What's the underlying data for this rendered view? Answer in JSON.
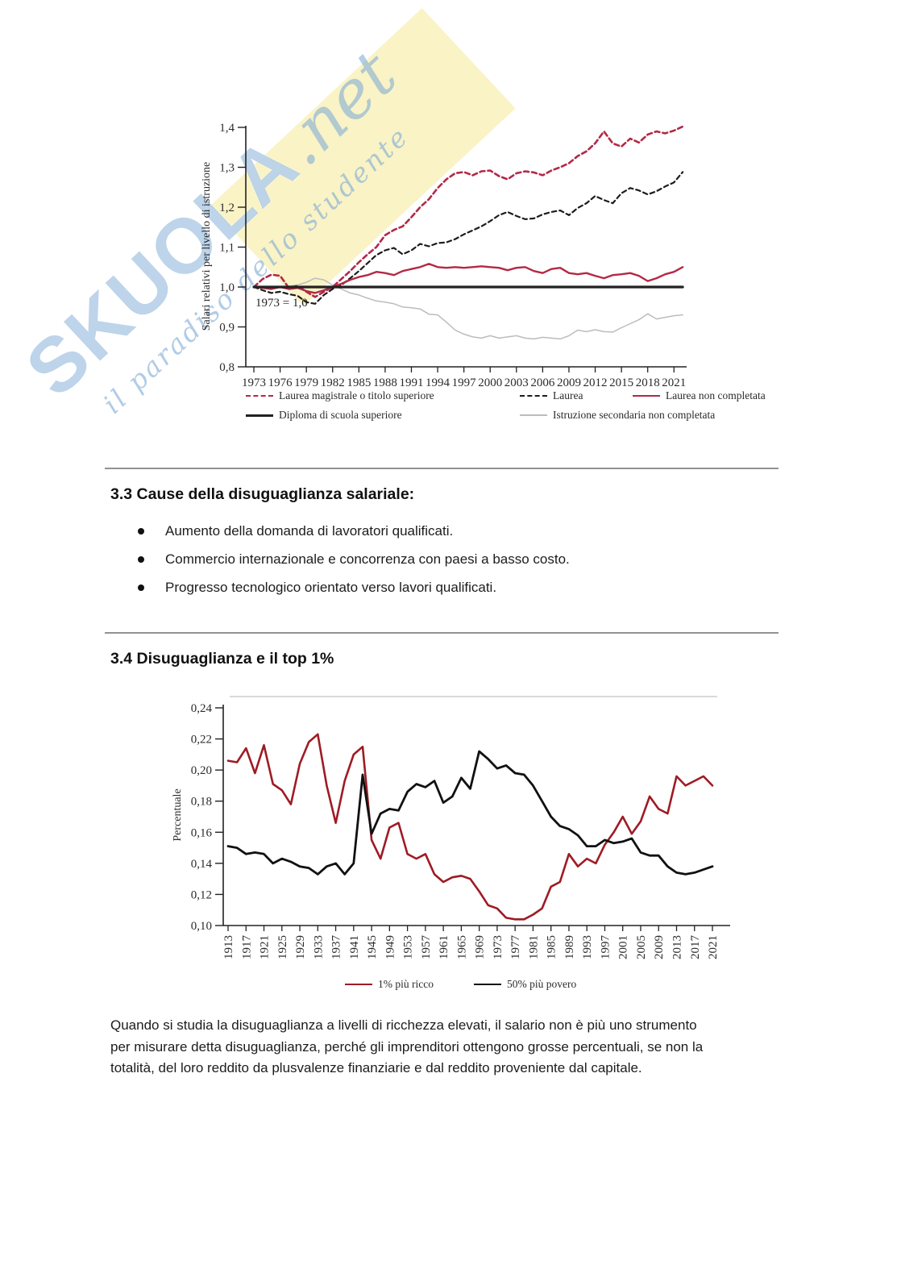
{
  "watermark": {
    "brand": "SKUOLA",
    "suffix": ".net",
    "tagline": "il paradiso dello studente",
    "brand_color": "#7caad5",
    "panel_color": "#f9f2c1"
  },
  "sections": {
    "causes": {
      "heading": "3.3 Cause della disuguaglianza salariale:",
      "bullets": [
        "Aumento della domanda di lavoratori qualificati.",
        "Commercio internazionale e concorrenza con paesi a basso costo.",
        "Progresso tecnologico orientato verso lavori qualificati."
      ]
    },
    "top1": {
      "heading": "3.4 Disuguaglianza e il top 1%"
    },
    "closing_paragraph": "Quando si studia la disuguaglianza a livelli di ricchezza elevati, il salario non è più uno strumento per misurare detta disuguaglianza, perché gli imprenditori ottengono grosse percentuali, se non la totalità, del loro reddito da plusvalenze finanziarie e dal reddito proveniente dal capitale."
  },
  "chart_data": [
    {
      "id": "wages-by-education",
      "type": "line",
      "title": "",
      "xlabel": "",
      "ylabel": "Salari relativi per livello di istruzione",
      "annotation": "1973 = 1,0",
      "ylim": [
        0.8,
        1.4
      ],
      "ytick_step": 0.1,
      "ytick_labels": [
        "0,8",
        "0,9",
        "1,0",
        "1,1",
        "1,2",
        "1,3",
        "1,4"
      ],
      "xticks": [
        1973,
        1976,
        1979,
        1982,
        1985,
        1988,
        1991,
        1994,
        1997,
        2000,
        2003,
        2006,
        2009,
        2012,
        2015,
        2018,
        2021
      ],
      "grid": false,
      "legend_position": "below",
      "x": [
        1973,
        1974,
        1975,
        1976,
        1977,
        1978,
        1979,
        1980,
        1981,
        1982,
        1983,
        1984,
        1985,
        1986,
        1987,
        1988,
        1989,
        1990,
        1991,
        1992,
        1993,
        1994,
        1995,
        1996,
        1997,
        1998,
        1999,
        2000,
        2001,
        2002,
        2003,
        2004,
        2005,
        2006,
        2007,
        2008,
        2009,
        2010,
        2011,
        2012,
        2013,
        2014,
        2015,
        2016,
        2017,
        2018,
        2019,
        2020,
        2021,
        2022
      ],
      "series": [
        {
          "name": "Laurea magistrale o titolo superiore",
          "color": "#b32946",
          "dash": "6 4",
          "width": 2.6,
          "values": [
            1.0,
            1.02,
            1.031,
            1.028,
            0.998,
            1.003,
            0.988,
            0.975,
            0.988,
            1.0,
            1.02,
            1.04,
            1.062,
            1.082,
            1.1,
            1.13,
            1.143,
            1.152,
            1.175,
            1.2,
            1.22,
            1.248,
            1.27,
            1.285,
            1.288,
            1.28,
            1.29,
            1.292,
            1.278,
            1.27,
            1.285,
            1.29,
            1.287,
            1.28,
            1.292,
            1.3,
            1.31,
            1.328,
            1.34,
            1.36,
            1.39,
            1.36,
            1.352,
            1.372,
            1.362,
            1.382,
            1.39,
            1.385,
            1.392,
            1.402
          ]
        },
        {
          "name": "Laurea",
          "color": "#1c1c1c",
          "dash": "5.5 4",
          "width": 2.2,
          "values": [
            1.0,
            0.992,
            0.985,
            0.988,
            0.982,
            0.978,
            0.962,
            0.958,
            0.98,
            0.995,
            1.005,
            1.022,
            1.04,
            1.06,
            1.08,
            1.092,
            1.098,
            1.082,
            1.092,
            1.108,
            1.102,
            1.11,
            1.112,
            1.12,
            1.132,
            1.142,
            1.152,
            1.165,
            1.18,
            1.188,
            1.178,
            1.17,
            1.172,
            1.182,
            1.188,
            1.192,
            1.18,
            1.198,
            1.21,
            1.228,
            1.218,
            1.21,
            1.235,
            1.248,
            1.242,
            1.232,
            1.24,
            1.252,
            1.262,
            1.288
          ]
        },
        {
          "name": "Laurea non completata",
          "color": "#b32946",
          "dash": null,
          "width": 2.4,
          "values": [
            1.0,
            0.998,
            0.995,
            1.0,
            0.995,
            0.998,
            0.99,
            0.985,
            0.992,
            1.0,
            1.008,
            1.018,
            1.025,
            1.03,
            1.038,
            1.035,
            1.03,
            1.04,
            1.045,
            1.05,
            1.058,
            1.05,
            1.048,
            1.05,
            1.048,
            1.05,
            1.052,
            1.05,
            1.048,
            1.042,
            1.048,
            1.05,
            1.04,
            1.035,
            1.045,
            1.048,
            1.035,
            1.032,
            1.035,
            1.028,
            1.022,
            1.03,
            1.032,
            1.035,
            1.028,
            1.015,
            1.022,
            1.032,
            1.038,
            1.05
          ]
        },
        {
          "name": "Diploma di scuola superiore",
          "color": "#222222",
          "dash": null,
          "width": 3.2,
          "values": [
            1.0,
            1.0,
            1.0,
            1.0,
            1.0,
            1.0,
            1.0,
            1.0,
            1.0,
            1.0,
            1.0,
            1.0,
            1.0,
            1.0,
            1.0,
            1.0,
            1.0,
            1.0,
            1.0,
            1.0,
            1.0,
            1.0,
            1.0,
            1.0,
            1.0,
            1.0,
            1.0,
            1.0,
            1.0,
            1.0,
            1.0,
            1.0,
            1.0,
            1.0,
            1.0,
            1.0,
            1.0,
            1.0,
            1.0,
            1.0,
            1.0,
            1.0,
            1.0,
            1.0,
            1.0,
            1.0,
            1.0,
            1.0,
            1.0,
            1.0
          ]
        },
        {
          "name": "Istruzione secondaria non completata",
          "color": "#bcbcbc",
          "dash": null,
          "width": 1.5,
          "z": -1,
          "values": [
            1.0,
            1.0,
            0.998,
            1.0,
            1.002,
            1.005,
            1.012,
            1.022,
            1.018,
            1.005,
            0.995,
            0.985,
            0.98,
            0.972,
            0.965,
            0.962,
            0.958,
            0.95,
            0.948,
            0.945,
            0.932,
            0.93,
            0.912,
            0.892,
            0.882,
            0.875,
            0.872,
            0.878,
            0.872,
            0.875,
            0.878,
            0.872,
            0.87,
            0.874,
            0.872,
            0.87,
            0.878,
            0.892,
            0.888,
            0.893,
            0.888,
            0.887,
            0.898,
            0.908,
            0.918,
            0.933,
            0.92,
            0.924,
            0.928,
            0.93
          ]
        }
      ]
    },
    {
      "id": "top1-vs-bottom50",
      "type": "line",
      "title": "",
      "xlabel": "",
      "ylabel": "Percentuale",
      "annotation": null,
      "ylim": [
        0.1,
        0.24
      ],
      "ytick_step": 0.02,
      "ytick_labels": [
        "0,10",
        "0,12",
        "0,14",
        "0,16",
        "0,18",
        "0,20",
        "0,22",
        "0,24"
      ],
      "xticks": [
        1913,
        1917,
        1921,
        1925,
        1929,
        1933,
        1937,
        1941,
        1945,
        1949,
        1953,
        1957,
        1961,
        1965,
        1969,
        1973,
        1977,
        1981,
        1985,
        1989,
        1993,
        1997,
        2001,
        2005,
        2009,
        2013,
        2017,
        2021
      ],
      "grid": false,
      "legend_position": "below",
      "x": [
        1913,
        1915,
        1917,
        1919,
        1921,
        1923,
        1925,
        1927,
        1929,
        1931,
        1933,
        1935,
        1937,
        1939,
        1941,
        1943,
        1945,
        1947,
        1949,
        1951,
        1953,
        1955,
        1957,
        1959,
        1961,
        1963,
        1965,
        1967,
        1969,
        1971,
        1973,
        1975,
        1977,
        1979,
        1981,
        1983,
        1985,
        1987,
        1989,
        1991,
        1993,
        1995,
        1997,
        1999,
        2001,
        2003,
        2005,
        2007,
        2009,
        2011,
        2013,
        2015,
        2017,
        2019,
        2021
      ],
      "series": [
        {
          "name": "1% più ricco",
          "color": "#9e1b24",
          "dash": null,
          "width": 2.6,
          "values": [
            0.206,
            0.205,
            0.214,
            0.198,
            0.216,
            0.191,
            0.187,
            0.178,
            0.204,
            0.218,
            0.223,
            0.19,
            0.166,
            0.193,
            0.21,
            0.215,
            0.155,
            0.143,
            0.163,
            0.166,
            0.146,
            0.143,
            0.146,
            0.133,
            0.128,
            0.131,
            0.132,
            0.13,
            0.122,
            0.113,
            0.111,
            0.105,
            0.104,
            0.104,
            0.107,
            0.111,
            0.125,
            0.128,
            0.146,
            0.138,
            0.143,
            0.14,
            0.152,
            0.16,
            0.17,
            0.159,
            0.167,
            0.183,
            0.175,
            0.172,
            0.196,
            0.19,
            0.193,
            0.196,
            0.19
          ]
        },
        {
          "name": "50% più povero",
          "color": "#111111",
          "dash": null,
          "width": 2.8,
          "values": [
            0.151,
            0.15,
            0.146,
            0.147,
            0.146,
            0.14,
            0.143,
            0.141,
            0.138,
            0.137,
            0.133,
            0.138,
            0.14,
            0.133,
            0.14,
            0.197,
            0.159,
            0.172,
            0.175,
            0.174,
            0.186,
            0.191,
            0.189,
            0.193,
            0.179,
            0.183,
            0.195,
            0.188,
            0.212,
            0.207,
            0.201,
            0.203,
            0.198,
            0.197,
            0.19,
            0.18,
            0.17,
            0.164,
            0.162,
            0.158,
            0.151,
            0.151,
            0.155,
            0.153,
            0.154,
            0.156,
            0.147,
            0.145,
            0.145,
            0.138,
            0.134,
            0.133,
            0.134,
            0.136,
            0.138
          ]
        }
      ]
    }
  ]
}
